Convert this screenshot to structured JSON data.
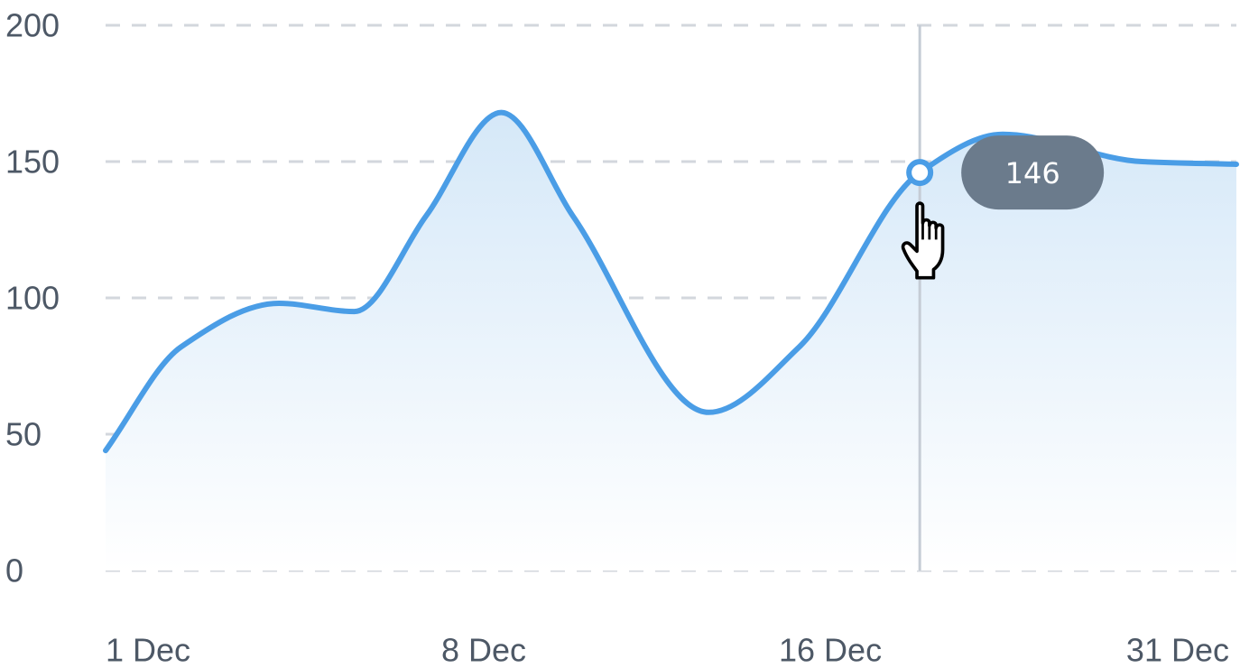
{
  "chart_data": {
    "type": "area",
    "title": "",
    "xlabel": "",
    "ylabel": "",
    "ylim": [
      0,
      200
    ],
    "yticks": [
      0,
      50,
      100,
      150,
      200
    ],
    "xtick_labels": [
      "1 Dec",
      "8 Dec",
      "16 Dec",
      "31 Dec"
    ],
    "grid": true,
    "legend": "none",
    "series": [
      {
        "color": "#4a9de6",
        "points": [
          {
            "x": 0.0,
            "y": 44
          },
          {
            "x": 2.0,
            "y": 82
          },
          {
            "x": 4.6,
            "y": 98
          },
          {
            "x": 6.6,
            "y": 95
          },
          {
            "x": 8.5,
            "y": 130
          },
          {
            "x": 10.5,
            "y": 168
          },
          {
            "x": 12.4,
            "y": 130
          },
          {
            "x": 16.0,
            "y": 58
          },
          {
            "x": 18.4,
            "y": 82
          },
          {
            "x": 21.6,
            "y": 146
          },
          {
            "x": 23.8,
            "y": 160
          },
          {
            "x": 27.5,
            "y": 150
          },
          {
            "x": 30.0,
            "y": 149
          }
        ]
      }
    ],
    "hover": {
      "x": 21.6,
      "y": 146,
      "label": "146"
    }
  },
  "colors": {
    "line": "#4a9de6",
    "area_top": "#d5e8f8",
    "grid": "#d3d7dd",
    "crosshair": "#c5ccd5",
    "tooltip_bg": "#6b7b8c",
    "tick_text": "#4d5866"
  },
  "icons": {
    "cursor": "hand-pointer-icon"
  }
}
